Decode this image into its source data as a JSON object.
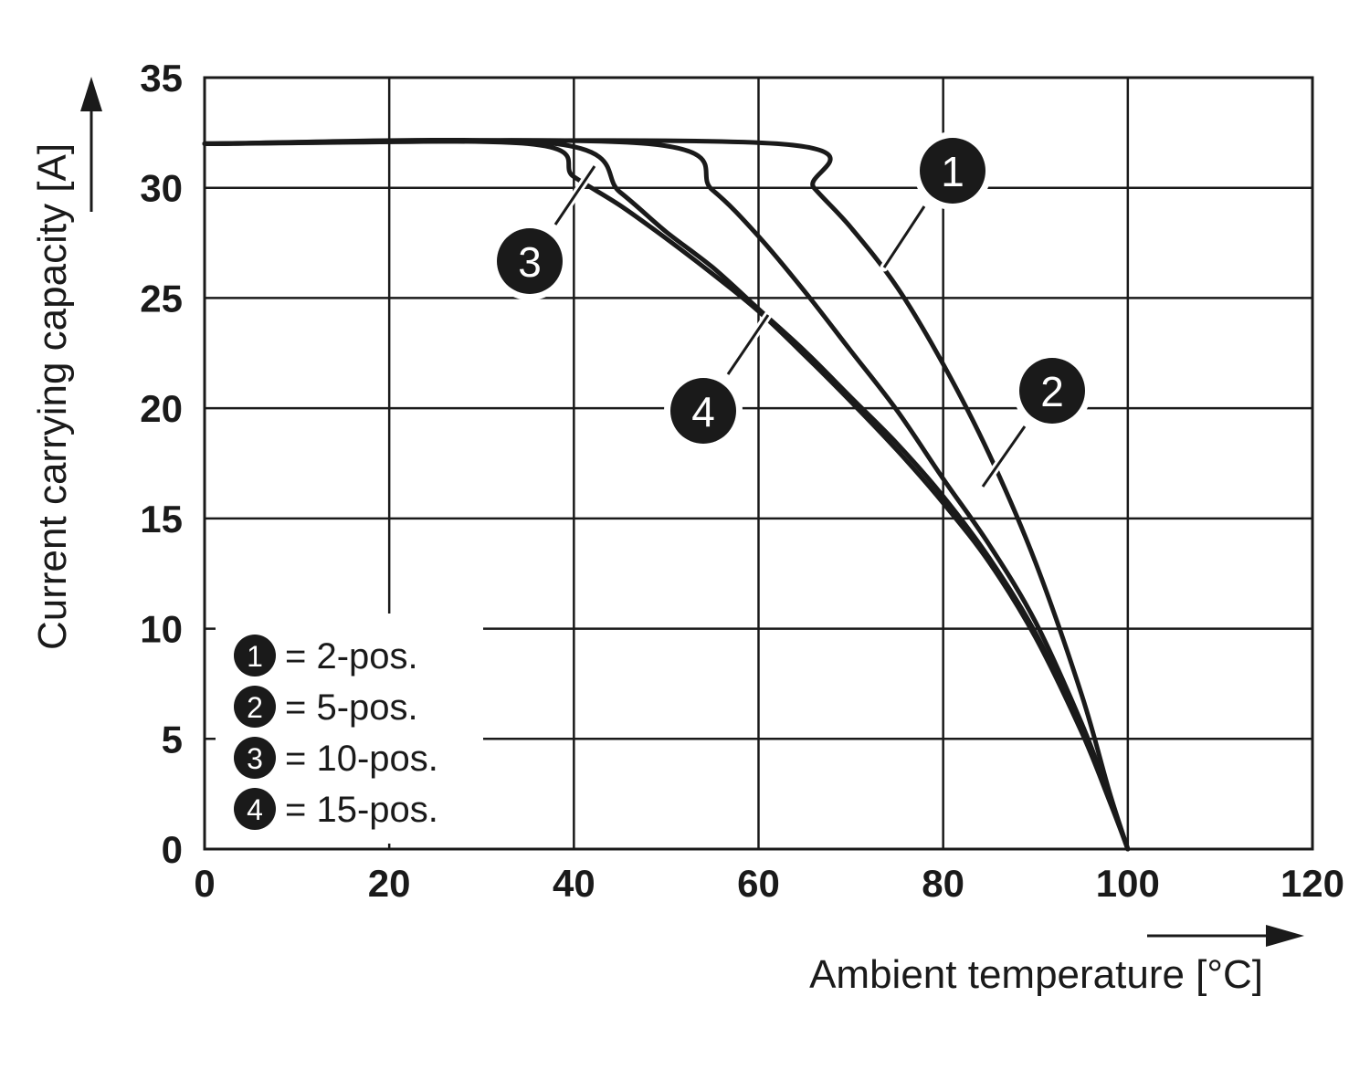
{
  "chart_data": {
    "type": "line",
    "title": "",
    "xlabel": "Ambient temperature [°C]",
    "ylabel": "Current carrying capacity [A]",
    "xlim": [
      0,
      120
    ],
    "ylim": [
      0,
      35
    ],
    "x_ticks": [
      "0",
      "20",
      "40",
      "60",
      "80",
      "100",
      "120"
    ],
    "y_ticks": [
      "0",
      "5",
      "10",
      "15",
      "20",
      "25",
      "30",
      "35"
    ],
    "grid": true,
    "legend": "bottom-left",
    "line_color": "#1a1a1a",
    "series": [
      {
        "marker": "1",
        "label": "= 2-pos.",
        "points": [
          [
            0,
            32
          ],
          [
            62,
            32
          ],
          [
            66,
            30
          ],
          [
            70,
            28.2
          ],
          [
            75,
            25.5
          ],
          [
            80,
            22
          ],
          [
            85,
            17.9
          ],
          [
            90,
            13
          ],
          [
            95,
            7
          ],
          [
            98,
            2.6
          ],
          [
            100,
            0
          ]
        ]
      },
      {
        "marker": "2",
        "label": "= 5-pos.",
        "points": [
          [
            0,
            32
          ],
          [
            48,
            32
          ],
          [
            55,
            29.9
          ],
          [
            60,
            27.8
          ],
          [
            65,
            25.3
          ],
          [
            70,
            22.6
          ],
          [
            75,
            19.9
          ],
          [
            80,
            16.8
          ],
          [
            85,
            13.8
          ],
          [
            90,
            10.3
          ],
          [
            95,
            5.7
          ],
          [
            98,
            2.4
          ],
          [
            100,
            0
          ]
        ]
      },
      {
        "marker": "3",
        "label": "= 10-pos.",
        "points": [
          [
            0,
            32
          ],
          [
            38,
            32
          ],
          [
            45,
            29.8
          ],
          [
            50,
            28
          ],
          [
            55,
            26.4
          ],
          [
            60,
            24.5
          ],
          [
            65,
            22.6
          ],
          [
            70,
            20.5
          ],
          [
            75,
            18.4
          ],
          [
            80,
            16
          ],
          [
            85,
            13.2
          ],
          [
            90,
            9.8
          ],
          [
            95,
            5.4
          ],
          [
            98,
            2.3
          ],
          [
            100,
            0
          ]
        ]
      },
      {
        "marker": "4",
        "label": "= 15-pos.",
        "points": [
          [
            0,
            32
          ],
          [
            35,
            32
          ],
          [
            40,
            30.5
          ],
          [
            45,
            29.2
          ],
          [
            50,
            27.7
          ],
          [
            55,
            26.1
          ],
          [
            60,
            24.4
          ],
          [
            65,
            22.4
          ],
          [
            70,
            20.3
          ],
          [
            75,
            18.1
          ],
          [
            80,
            15.7
          ],
          [
            85,
            13
          ],
          [
            90,
            9.6
          ],
          [
            95,
            5.3
          ],
          [
            98,
            2.2
          ],
          [
            100,
            0
          ]
        ]
      }
    ],
    "callouts": [
      {
        "marker": "1",
        "series": 1
      },
      {
        "marker": "2",
        "series": 2
      },
      {
        "marker": "3",
        "series": 3
      },
      {
        "marker": "4",
        "series": 4
      }
    ]
  }
}
